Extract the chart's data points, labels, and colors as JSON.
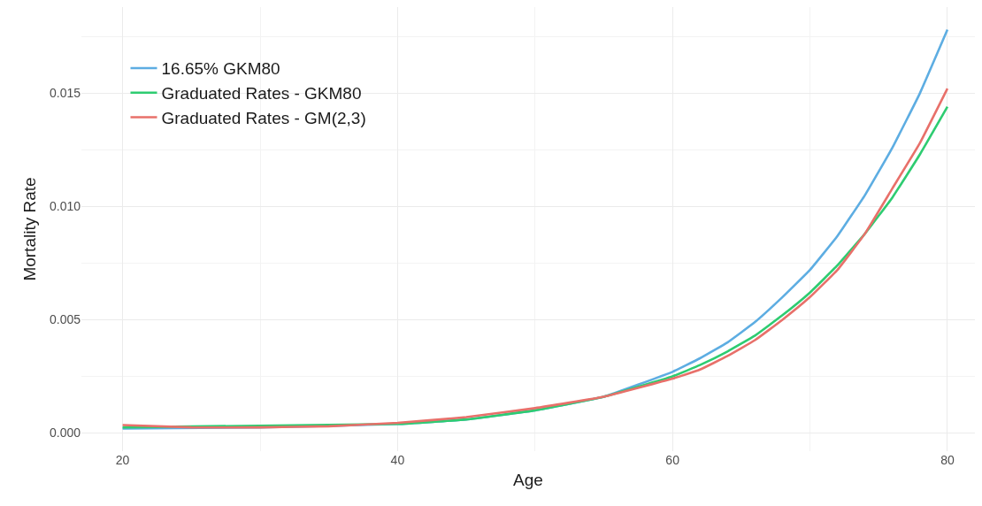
{
  "chart_data": {
    "type": "line",
    "xlabel": "Age",
    "ylabel": "Mortality Rate",
    "xlim": [
      17,
      82
    ],
    "xticks": [
      20,
      40,
      60,
      80
    ],
    "ylim": [
      -0.0008,
      0.0188
    ],
    "yticks": [
      {
        "value": 0,
        "label": "0.000"
      },
      {
        "value": 0.005,
        "label": "0.005"
      },
      {
        "value": 0.01,
        "label": "0.010"
      },
      {
        "value": 0.015,
        "label": "0.015"
      }
    ],
    "grid": true,
    "legend": "top left",
    "marker": "none",
    "line_style": "solid",
    "series": [
      {
        "name": "16.65% GKM80",
        "color": "#5dade2",
        "x": [
          20,
          30,
          40,
          45,
          50,
          55,
          60,
          62,
          64,
          66,
          68,
          70,
          72,
          74,
          76,
          78,
          80
        ],
        "values": [
          0.0002,
          0.00025,
          0.0004,
          0.0006,
          0.001,
          0.0016,
          0.0027,
          0.0033,
          0.004,
          0.0049,
          0.006,
          0.0072,
          0.0087,
          0.0105,
          0.0126,
          0.015,
          0.0178
        ]
      },
      {
        "name": "Graduated Rates - GKM80",
        "color": "#2ecc71",
        "x": [
          20,
          40,
          45,
          50,
          55,
          60,
          62,
          64,
          66,
          68,
          70,
          72,
          74,
          76,
          78,
          80
        ],
        "values": [
          0.00025,
          0.0004,
          0.0006,
          0.001,
          0.0016,
          0.0025,
          0.003,
          0.0036,
          0.0043,
          0.0052,
          0.0062,
          0.0074,
          0.0088,
          0.0104,
          0.0123,
          0.0144
        ]
      },
      {
        "name": "Graduated Rates - GM(2,3)",
        "color": "#e8706a",
        "x": [
          20,
          25,
          30,
          35,
          40,
          45,
          50,
          55,
          60,
          62,
          64,
          66,
          68,
          70,
          72,
          74,
          76,
          78,
          80
        ],
        "values": [
          0.00035,
          0.00025,
          0.00025,
          0.0003,
          0.00045,
          0.0007,
          0.0011,
          0.0016,
          0.0024,
          0.0028,
          0.0034,
          0.0041,
          0.005,
          0.006,
          0.0072,
          0.0088,
          0.0108,
          0.0128,
          0.0152
        ]
      }
    ]
  }
}
